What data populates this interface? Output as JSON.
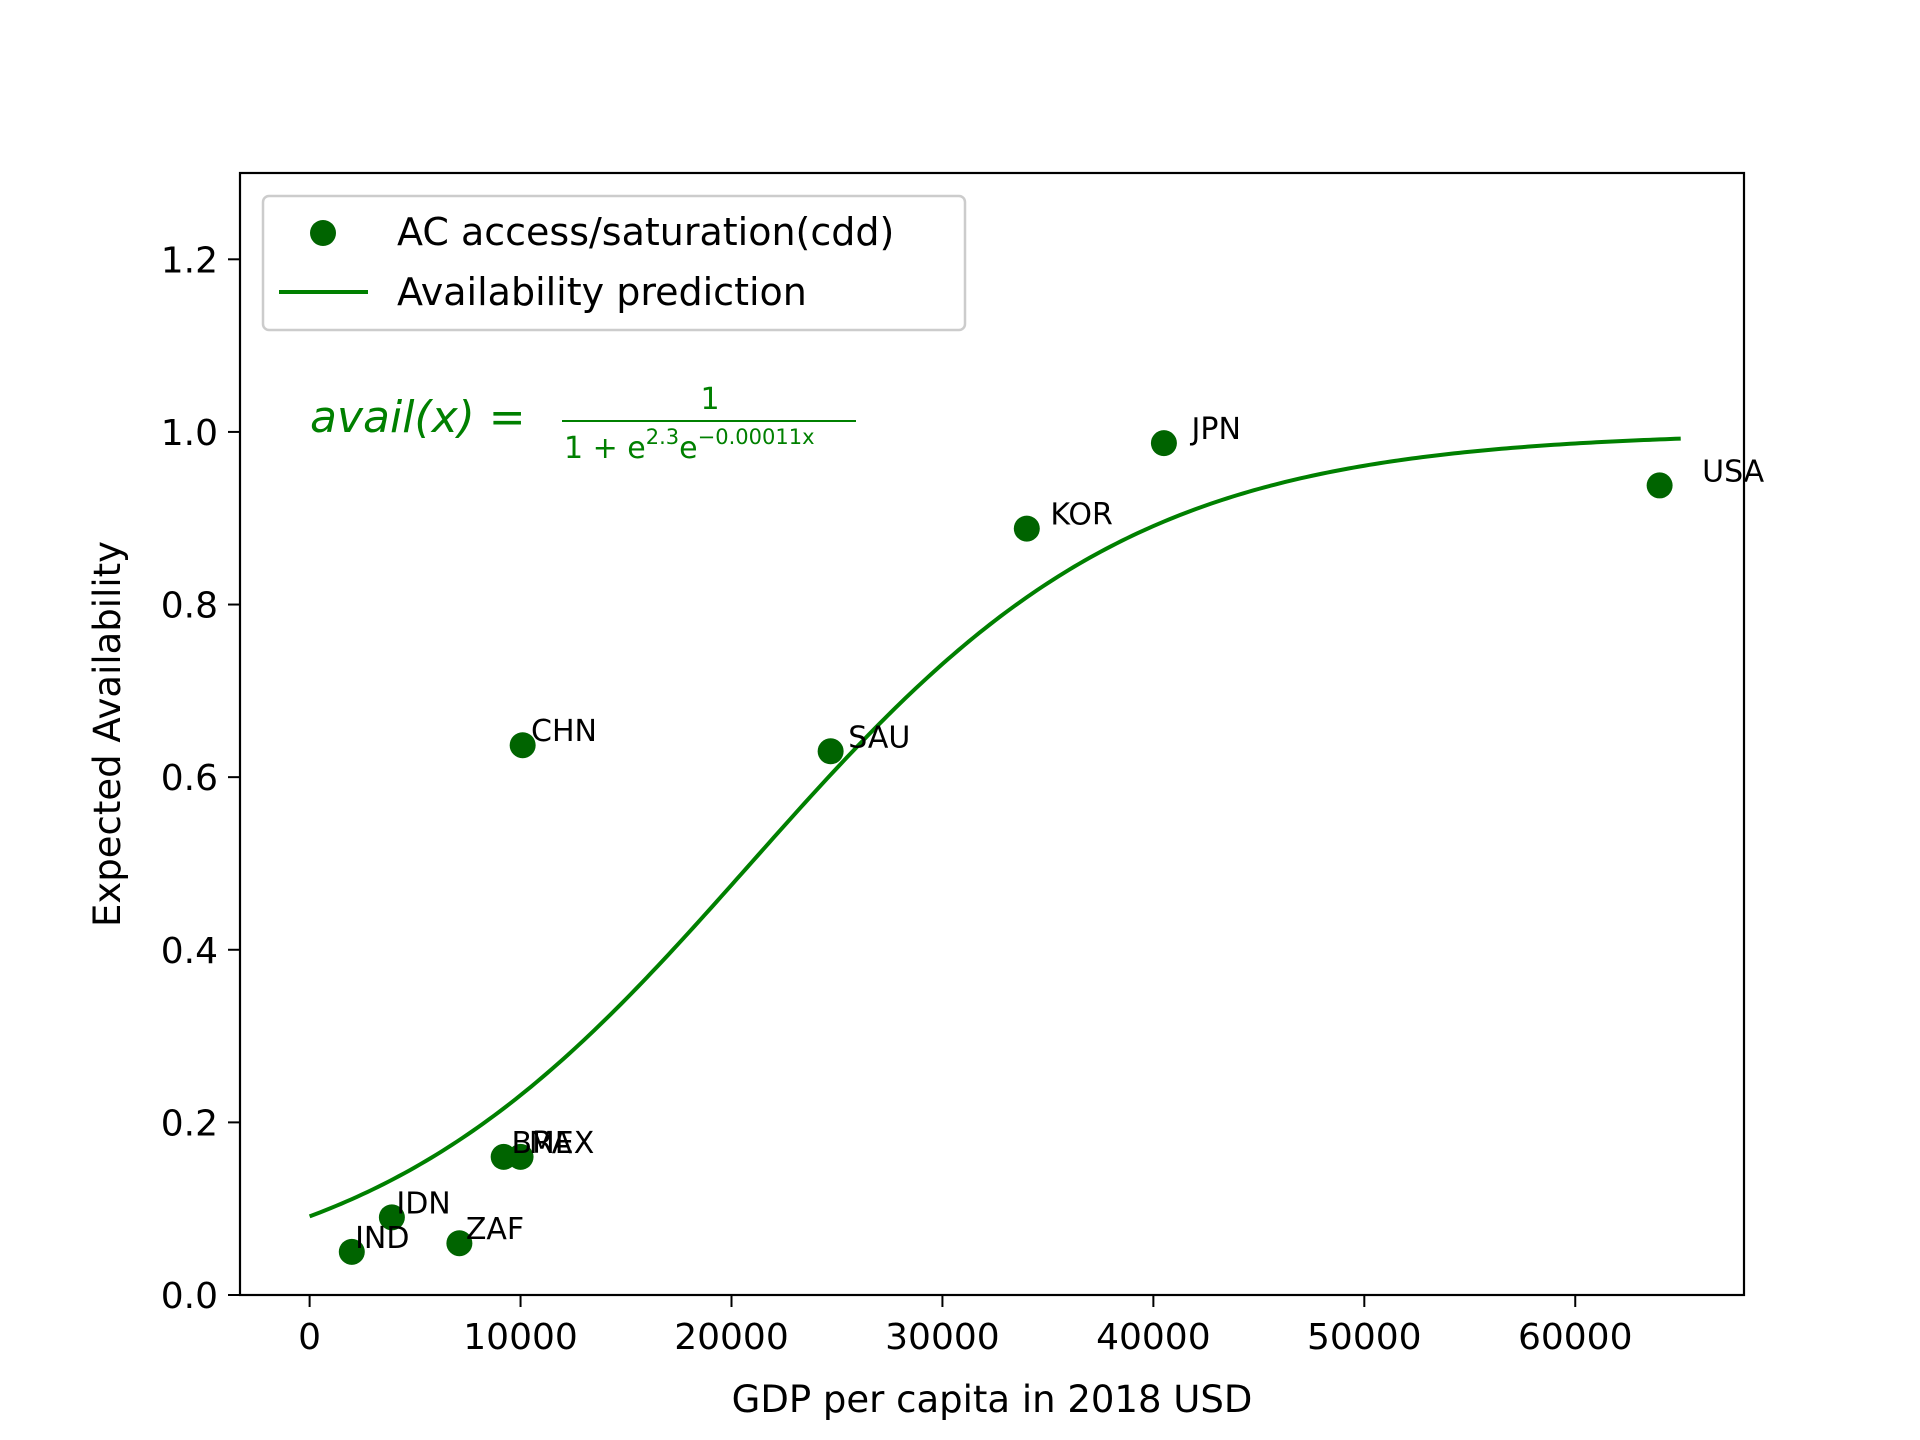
{
  "chart_data": {
    "type": "scatter",
    "xlabel": "GDP per capita in 2018 USD",
    "ylabel": "Expected Availability",
    "xlim": [
      -3300,
      68000
    ],
    "ylim": [
      0,
      1.3
    ],
    "xticks": [
      0,
      10000,
      20000,
      30000,
      40000,
      50000,
      60000
    ],
    "xtick_labels": [
      "0",
      "10000",
      "20000",
      "30000",
      "40000",
      "50000",
      "60000"
    ],
    "yticks": [
      0.0,
      0.2,
      0.4,
      0.6,
      0.8,
      1.0,
      1.2
    ],
    "ytick_labels": [
      "0.0",
      "0.2",
      "0.4",
      "0.6",
      "0.8",
      "1.0",
      "1.2"
    ],
    "grid": false,
    "legend_position": "upper-left",
    "color": "#006400",
    "line_color": "#008000",
    "series": [
      {
        "name": "AC access/saturation(cdd)",
        "kind": "scatter",
        "points": [
          {
            "label": "IND",
            "x": 2000,
            "y": 0.05
          },
          {
            "label": "IDN",
            "x": 3900,
            "y": 0.09
          },
          {
            "label": "ZAF",
            "x": 7100,
            "y": 0.06
          },
          {
            "label": "BRA",
            "x": 9200,
            "y": 0.16
          },
          {
            "label": "MEX",
            "x": 10000,
            "y": 0.16
          },
          {
            "label": "CHN",
            "x": 10100,
            "y": 0.637
          },
          {
            "label": "SAU",
            "x": 24700,
            "y": 0.63
          },
          {
            "label": "KOR",
            "x": 34000,
            "y": 0.888
          },
          {
            "label": "JPN",
            "x": 40500,
            "y": 0.987
          },
          {
            "label": "USA",
            "x": 64000,
            "y": 0.938
          }
        ]
      },
      {
        "name": "Availability prediction",
        "kind": "line",
        "function": "logistic",
        "params": {
          "a": 2.3,
          "b": 0.00011
        },
        "x_range": [
          0,
          65000
        ]
      }
    ],
    "annotation": {
      "lhs": "avail(x) =",
      "numerator": "1",
      "den_prefix": "1 + e",
      "den_exp1": "2.3",
      "den_mid": "e",
      "den_exp2": "−0.00011x"
    }
  }
}
